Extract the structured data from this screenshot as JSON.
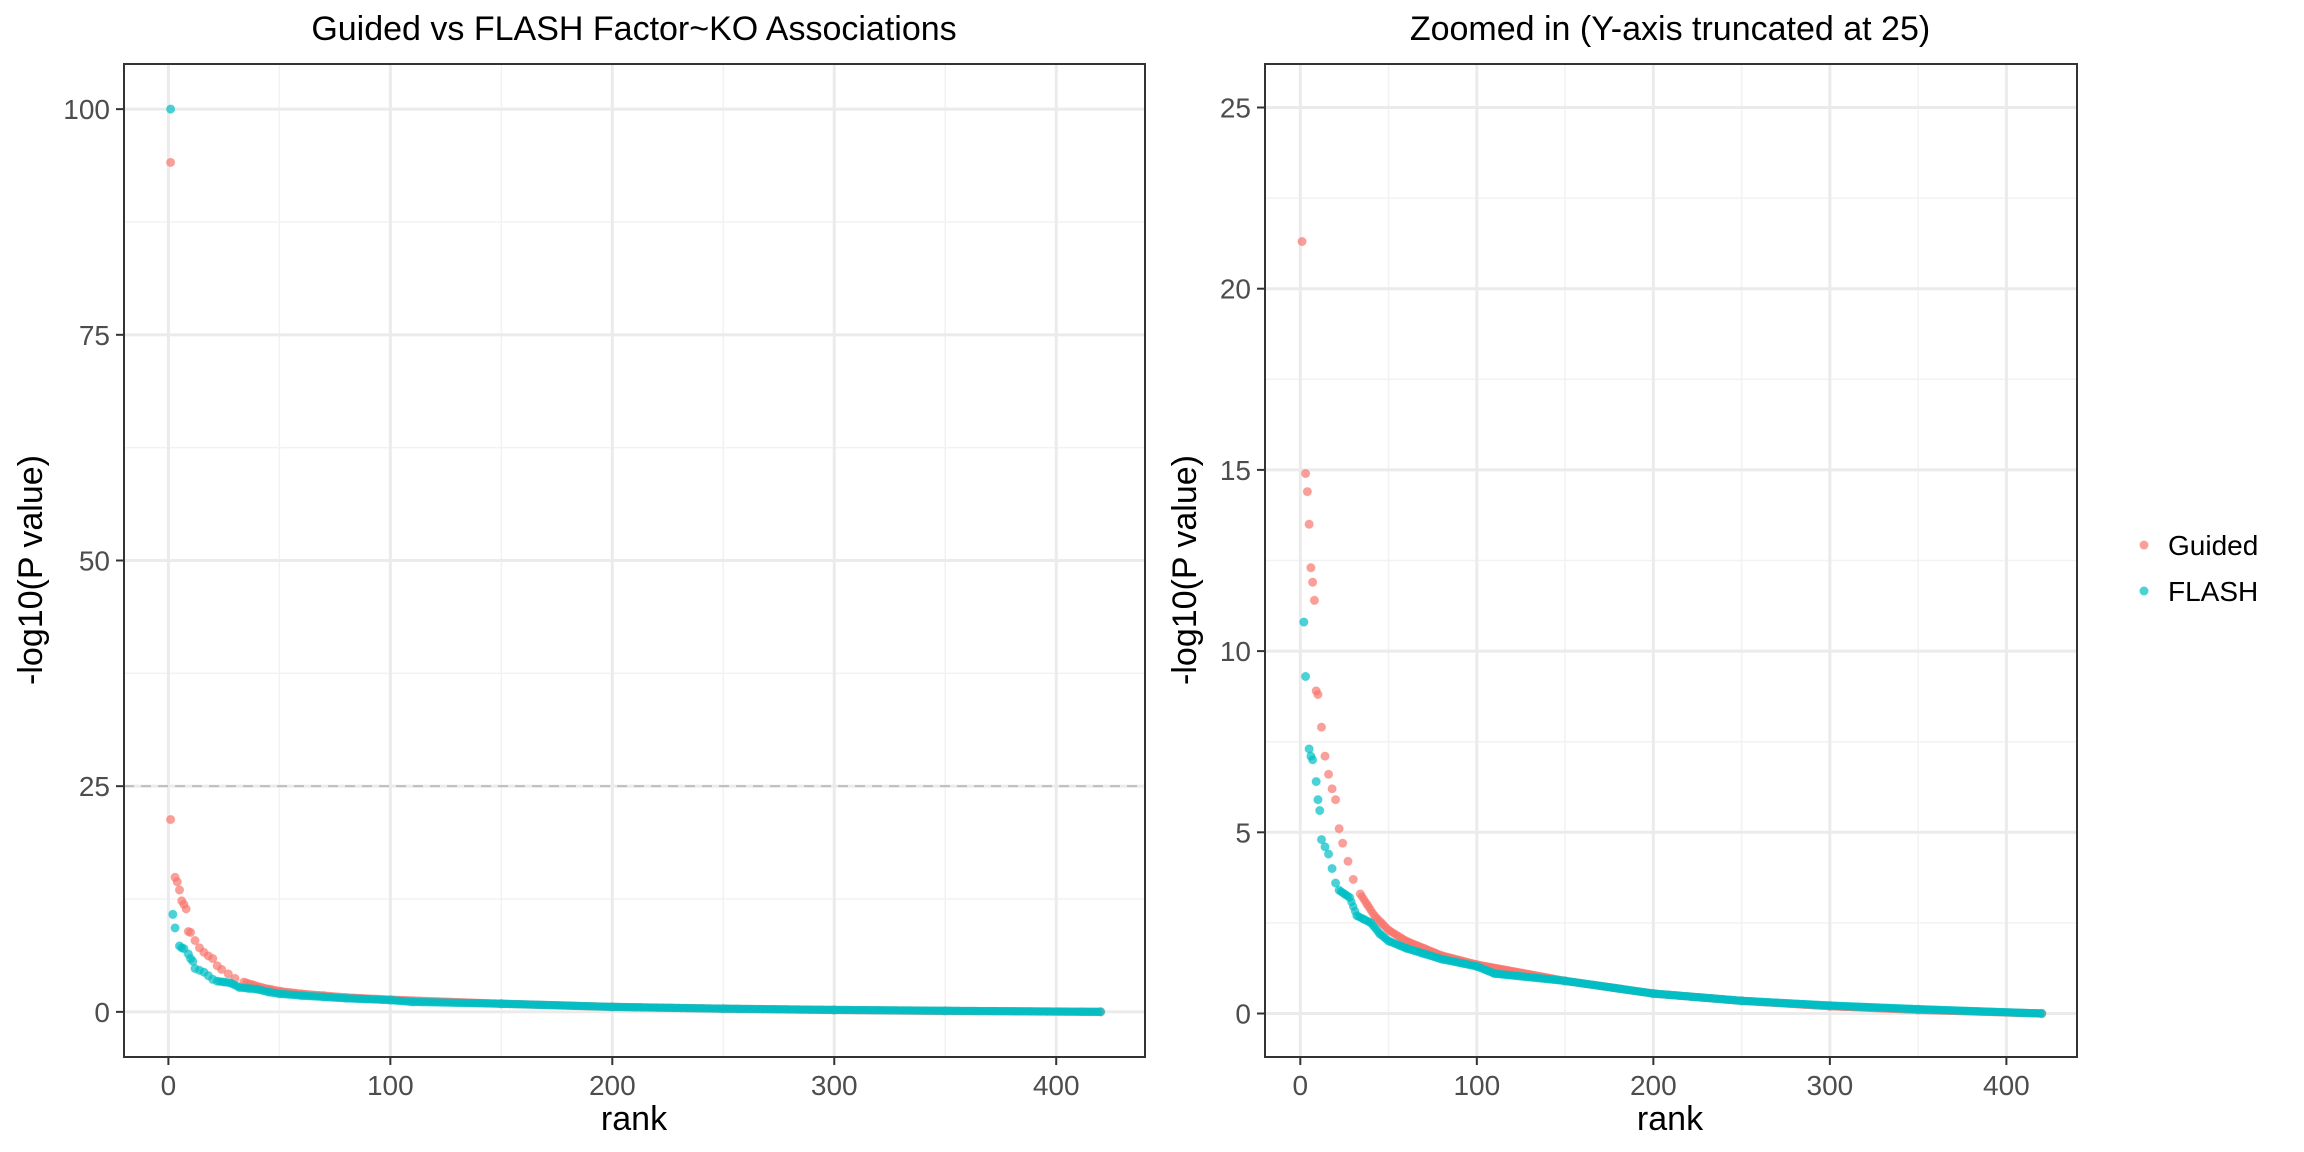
{
  "chart_data": [
    {
      "type": "scatter",
      "title": "Guided vs FLASH Factor~KO Associations",
      "xlabel": "rank",
      "ylabel": "-log10(P value)",
      "xlim": [
        -20,
        440
      ],
      "ylim": [
        -5,
        105
      ],
      "xticks": [
        0,
        100,
        200,
        300,
        400
      ],
      "yticks": [
        0,
        25,
        50,
        75,
        100
      ],
      "hline": {
        "y": 25,
        "style": "dashed"
      },
      "grid": true,
      "series": [
        {
          "name": "Guided",
          "color": "#F8766D",
          "points": [
            [
              1,
              94.1
            ],
            [
              1,
              21.3
            ],
            [
              3,
              14.9
            ],
            [
              4,
              14.4
            ],
            [
              5,
              13.5
            ],
            [
              6,
              12.3
            ],
            [
              7,
              11.9
            ],
            [
              8,
              11.4
            ],
            [
              9,
              8.9
            ],
            [
              10,
              8.8
            ],
            [
              12,
              7.9
            ],
            [
              14,
              7.1
            ],
            [
              16,
              6.6
            ],
            [
              18,
              6.2
            ],
            [
              20,
              5.9
            ],
            [
              22,
              5.1
            ],
            [
              24,
              4.7
            ],
            [
              27,
              4.2
            ],
            [
              30,
              3.7
            ],
            [
              34,
              3.3
            ],
            [
              38,
              3.0
            ],
            [
              42,
              2.7
            ],
            [
              46,
              2.5
            ],
            [
              50,
              2.3
            ],
            [
              60,
              2.0
            ],
            [
              70,
              1.8
            ],
            [
              80,
              1.6
            ],
            [
              100,
              1.35
            ],
            [
              150,
              0.9
            ],
            [
              200,
              0.55
            ],
            [
              250,
              0.35
            ],
            [
              300,
              0.2
            ],
            [
              350,
              0.1
            ],
            [
              420,
              0.0
            ]
          ]
        },
        {
          "name": "FLASH",
          "color": "#00BFC4",
          "points": [
            [
              1,
              100.0
            ],
            [
              2,
              10.8
            ],
            [
              3,
              9.3
            ],
            [
              5,
              7.3
            ],
            [
              6,
              7.1
            ],
            [
              7,
              7.0
            ],
            [
              9,
              6.4
            ],
            [
              10,
              5.9
            ],
            [
              11,
              5.6
            ],
            [
              12,
              4.8
            ],
            [
              14,
              4.6
            ],
            [
              16,
              4.4
            ],
            [
              18,
              4.0
            ],
            [
              20,
              3.6
            ],
            [
              22,
              3.4
            ],
            [
              25,
              3.3
            ],
            [
              28,
              3.2
            ],
            [
              32,
              2.7
            ],
            [
              36,
              2.6
            ],
            [
              40,
              2.5
            ],
            [
              45,
              2.2
            ],
            [
              50,
              2.0
            ],
            [
              60,
              1.8
            ],
            [
              70,
              1.65
            ],
            [
              80,
              1.5
            ],
            [
              100,
              1.3
            ],
            [
              110,
              1.1
            ],
            [
              150,
              0.9
            ],
            [
              200,
              0.55
            ],
            [
              250,
              0.35
            ],
            [
              300,
              0.22
            ],
            [
              350,
              0.12
            ],
            [
              420,
              0.0
            ]
          ]
        }
      ]
    },
    {
      "type": "scatter",
      "title": "Zoomed in (Y-axis truncated at 25)",
      "xlabel": "rank",
      "ylabel": "-log10(P value)",
      "xlim": [
        -20,
        440
      ],
      "ylim": [
        -1.2,
        26.2
      ],
      "xticks": [
        0,
        100,
        200,
        300,
        400
      ],
      "yticks": [
        0,
        5,
        10,
        15,
        20,
        25
      ],
      "grid": true,
      "series": [
        {
          "name": "Guided",
          "color": "#F8766D",
          "points": [
            [
              1,
              21.3
            ],
            [
              3,
              14.9
            ],
            [
              4,
              14.4
            ],
            [
              5,
              13.5
            ],
            [
              6,
              12.3
            ],
            [
              7,
              11.9
            ],
            [
              8,
              11.4
            ],
            [
              9,
              8.9
            ],
            [
              10,
              8.8
            ],
            [
              12,
              7.9
            ],
            [
              14,
              7.1
            ],
            [
              16,
              6.6
            ],
            [
              18,
              6.2
            ],
            [
              20,
              5.9
            ],
            [
              22,
              5.1
            ],
            [
              24,
              4.7
            ],
            [
              27,
              4.2
            ],
            [
              30,
              3.7
            ],
            [
              34,
              3.3
            ],
            [
              38,
              3.0
            ],
            [
              42,
              2.7
            ],
            [
              46,
              2.5
            ],
            [
              50,
              2.3
            ],
            [
              60,
              2.0
            ],
            [
              70,
              1.8
            ],
            [
              80,
              1.6
            ],
            [
              100,
              1.35
            ],
            [
              150,
              0.9
            ],
            [
              200,
              0.55
            ],
            [
              250,
              0.35
            ],
            [
              300,
              0.2
            ],
            [
              350,
              0.1
            ],
            [
              420,
              0.0
            ]
          ]
        },
        {
          "name": "FLASH",
          "color": "#00BFC4",
          "points": [
            [
              2,
              10.8
            ],
            [
              3,
              9.3
            ],
            [
              5,
              7.3
            ],
            [
              6,
              7.1
            ],
            [
              7,
              7.0
            ],
            [
              9,
              6.4
            ],
            [
              10,
              5.9
            ],
            [
              11,
              5.6
            ],
            [
              12,
              4.8
            ],
            [
              14,
              4.6
            ],
            [
              16,
              4.4
            ],
            [
              18,
              4.0
            ],
            [
              20,
              3.6
            ],
            [
              22,
              3.4
            ],
            [
              25,
              3.3
            ],
            [
              28,
              3.2
            ],
            [
              32,
              2.7
            ],
            [
              36,
              2.6
            ],
            [
              40,
              2.5
            ],
            [
              45,
              2.2
            ],
            [
              50,
              2.0
            ],
            [
              60,
              1.8
            ],
            [
              70,
              1.65
            ],
            [
              80,
              1.5
            ],
            [
              100,
              1.3
            ],
            [
              110,
              1.1
            ],
            [
              150,
              0.9
            ],
            [
              200,
              0.55
            ],
            [
              250,
              0.35
            ],
            [
              300,
              0.22
            ],
            [
              350,
              0.12
            ],
            [
              420,
              0.0
            ]
          ]
        }
      ]
    }
  ],
  "legend": {
    "position": "right",
    "items": [
      {
        "label": "Guided",
        "color": "#F8766D"
      },
      {
        "label": "FLASH",
        "color": "#00BFC4"
      }
    ]
  }
}
